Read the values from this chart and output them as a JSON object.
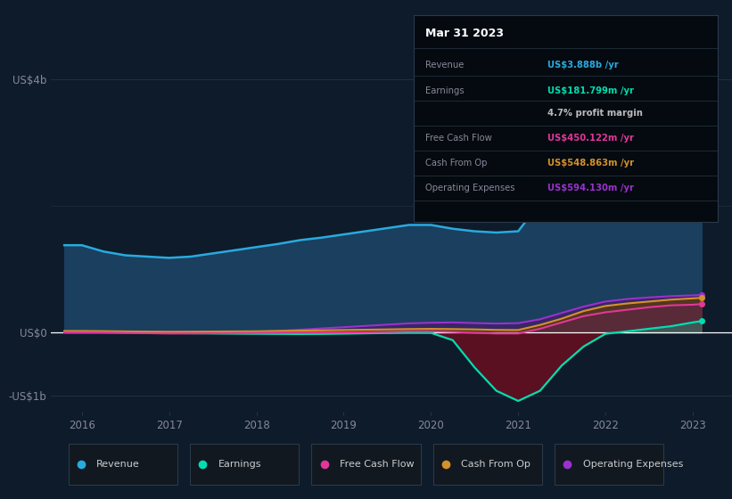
{
  "bg_color": "#0d1b2a",
  "plot_bg_color": "#0d1b2a",
  "grid_color": "#253545",
  "text_color": "#888899",
  "white_color": "#ffffff",
  "years": [
    2015.8,
    2016.0,
    2016.25,
    2016.5,
    2016.75,
    2017.0,
    2017.25,
    2017.5,
    2017.75,
    2018.0,
    2018.25,
    2018.5,
    2018.75,
    2019.0,
    2019.25,
    2019.5,
    2019.75,
    2020.0,
    2020.25,
    2020.5,
    2020.75,
    2021.0,
    2021.25,
    2021.5,
    2021.75,
    2022.0,
    2022.25,
    2022.5,
    2022.75,
    2023.0,
    2023.1
  ],
  "revenue": [
    1.38,
    1.38,
    1.28,
    1.22,
    1.2,
    1.18,
    1.2,
    1.25,
    1.3,
    1.35,
    1.4,
    1.46,
    1.5,
    1.55,
    1.6,
    1.65,
    1.7,
    1.7,
    1.64,
    1.6,
    1.58,
    1.6,
    2.05,
    2.7,
    3.1,
    3.25,
    3.45,
    3.62,
    3.78,
    3.87,
    3.888
  ],
  "earnings": [
    0.012,
    0.012,
    0.008,
    0.005,
    0.002,
    -0.008,
    -0.012,
    -0.015,
    -0.018,
    -0.02,
    -0.022,
    -0.024,
    -0.022,
    -0.018,
    -0.012,
    -0.008,
    -0.004,
    -0.005,
    -0.12,
    -0.55,
    -0.92,
    -1.08,
    -0.92,
    -0.52,
    -0.22,
    -0.02,
    0.02,
    0.06,
    0.1,
    0.16,
    0.182
  ],
  "free_cash_flow": [
    0.005,
    0.005,
    0.002,
    -0.005,
    -0.01,
    -0.015,
    -0.013,
    -0.01,
    -0.008,
    -0.006,
    -0.004,
    -0.002,
    0.0,
    0.002,
    0.005,
    0.01,
    0.018,
    0.02,
    0.01,
    -0.005,
    -0.015,
    -0.015,
    0.06,
    0.16,
    0.26,
    0.32,
    0.36,
    0.4,
    0.43,
    0.44,
    0.45
  ],
  "cash_from_op": [
    0.025,
    0.025,
    0.022,
    0.018,
    0.015,
    0.013,
    0.014,
    0.016,
    0.018,
    0.02,
    0.025,
    0.03,
    0.035,
    0.04,
    0.045,
    0.05,
    0.055,
    0.058,
    0.055,
    0.05,
    0.042,
    0.04,
    0.12,
    0.22,
    0.34,
    0.42,
    0.46,
    0.49,
    0.52,
    0.54,
    0.549
  ],
  "op_expenses": [
    0.0,
    0.0,
    0.0,
    0.0,
    0.0,
    0.0,
    0.0,
    0.0,
    0.0,
    0.01,
    0.025,
    0.045,
    0.065,
    0.085,
    0.105,
    0.125,
    0.145,
    0.155,
    0.16,
    0.15,
    0.142,
    0.148,
    0.21,
    0.31,
    0.41,
    0.49,
    0.53,
    0.555,
    0.575,
    0.588,
    0.594
  ],
  "revenue_color": "#29aadf",
  "revenue_fill": "#1b3f5e",
  "earnings_color": "#00ddb0",
  "earnings_fill_neg": "#5a1020",
  "free_cash_flow_color": "#e03898",
  "free_cash_flow_fill": "#602050",
  "cash_from_op_color": "#d4922a",
  "cash_from_op_fill": "#5a3a10",
  "op_expenses_color": "#9932cc",
  "op_expenses_fill": "#40206a",
  "ylim_min": -1.25,
  "ylim_max": 4.15,
  "ytick_vals": [
    -1.0,
    0.0,
    4.0
  ],
  "ytick_labels": [
    "-US$1b",
    "US$0",
    "US$4b"
  ],
  "xlim_min": 2015.65,
  "xlim_max": 2023.45,
  "xticks": [
    2016,
    2017,
    2018,
    2019,
    2020,
    2021,
    2022,
    2023
  ],
  "legend_items": [
    {
      "label": "Revenue",
      "color": "#29aadf"
    },
    {
      "label": "Earnings",
      "color": "#00ddb0"
    },
    {
      "label": "Free Cash Flow",
      "color": "#e03898"
    },
    {
      "label": "Cash From Op",
      "color": "#d4922a"
    },
    {
      "label": "Operating Expenses",
      "color": "#9932cc"
    }
  ],
  "tooltip": {
    "title": "Mar 31 2023",
    "rows": [
      {
        "label": "Revenue",
        "value": "US$3.888b /yr",
        "value_color": "#29aadf",
        "label_color": "#888899"
      },
      {
        "label": "Earnings",
        "value": "US$181.799m /yr",
        "value_color": "#00ddb0",
        "label_color": "#888899"
      },
      {
        "label": "",
        "value": "4.7% profit margin",
        "value_color": "#bbbbbb",
        "label_color": "#888899"
      },
      {
        "label": "Free Cash Flow",
        "value": "US$450.122m /yr",
        "value_color": "#e03898",
        "label_color": "#888899"
      },
      {
        "label": "Cash From Op",
        "value": "US$548.863m /yr",
        "value_color": "#d4922a",
        "label_color": "#888899"
      },
      {
        "label": "Operating Expenses",
        "value": "US$594.130m /yr",
        "value_color": "#9932cc",
        "label_color": "#888899"
      }
    ]
  }
}
